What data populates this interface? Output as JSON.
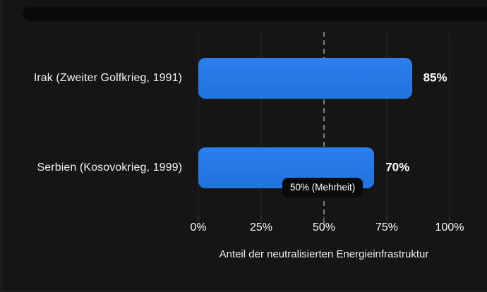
{
  "chart_data": {
    "type": "bar",
    "orientation": "horizontal",
    "categories": [
      "Irak (Zweiter Golfkrieg, 1991)",
      "Serbien (Kosovokrieg, 1999)"
    ],
    "values": [
      85,
      70
    ],
    "value_labels": [
      "85%",
      "70%"
    ],
    "x_ticks": [
      "0%",
      "25%",
      "50%",
      "75%",
      "100%"
    ],
    "x_tick_positions": [
      0,
      25,
      50,
      75,
      100
    ],
    "xlim": [
      0,
      100
    ],
    "xlabel": "Anteil der neutralisierten Energieinfrastruktur",
    "grid": true,
    "legend": false,
    "reference_line": {
      "value": 50,
      "label": "50% (Mehrheit)",
      "style": "dashed"
    },
    "colors": {
      "bar": "#2478e8",
      "background": "#151515",
      "gridline": "#2a2a2a",
      "reference_line": "#7d7d7d",
      "text": "#fafafa",
      "badge_background": "#0a0a0a"
    }
  }
}
